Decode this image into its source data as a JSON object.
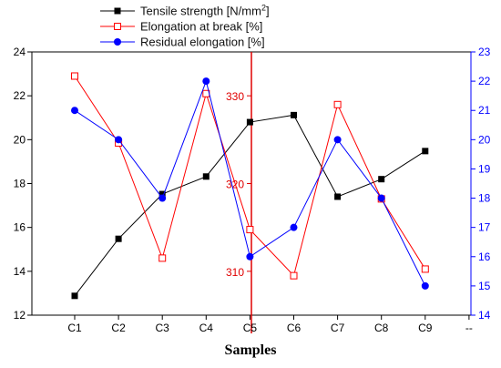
{
  "chart_data": {
    "type": "line",
    "xlabel": "Samples",
    "categories": [
      "C1",
      "C2",
      "C3",
      "C4",
      "C5",
      "C6",
      "C7",
      "C8",
      "C9"
    ],
    "extra_tick": "--",
    "legend": [
      {
        "key": "tensile",
        "name": "Tensile strength [N/mm",
        "sup": "2",
        "close": "]"
      },
      {
        "key": "elongation",
        "name": "Elongation at break [%]"
      },
      {
        "key": "residual",
        "name": "Residual elongation [%]"
      }
    ],
    "axes": {
      "left": {
        "ylim": [
          12,
          24
        ],
        "ticks": [
          "12",
          "14",
          "16",
          "18",
          "20",
          "22",
          "24"
        ],
        "color": "#000000"
      },
      "right": {
        "ylim": [
          14,
          23
        ],
        "ticks": [
          "14",
          "15",
          "16",
          "17",
          "18",
          "19",
          "20",
          "21",
          "22",
          "23"
        ],
        "color": "#0000ff"
      },
      "mid": {
        "ylim": [
          305,
          335
        ],
        "ticks": [
          "310",
          "320",
          "330"
        ],
        "color": "#e00000"
      }
    },
    "series": [
      {
        "key": "tensile",
        "name": "Tensile strength [N/mm2]",
        "axis": "mid",
        "color": "#000000",
        "marker": "square-filled",
        "values": [
          307.2,
          313.7,
          318.8,
          320.8,
          327.0,
          327.8,
          318.5,
          320.5,
          323.7
        ]
      },
      {
        "key": "elongation",
        "name": "Elongation at break [%]",
        "axis": "left",
        "color": "#ff0000",
        "marker": "square-open",
        "values": [
          22.9,
          19.85,
          14.6,
          22.1,
          15.9,
          13.8,
          21.6,
          17.3,
          14.1
        ]
      },
      {
        "key": "residual",
        "name": "Residual elongation [%]",
        "axis": "right",
        "color": "#0000ff",
        "marker": "circle-filled",
        "values": [
          21.0,
          20.0,
          18.0,
          22.0,
          16.0,
          17.0,
          20.0,
          18.0,
          15.0
        ]
      }
    ]
  }
}
